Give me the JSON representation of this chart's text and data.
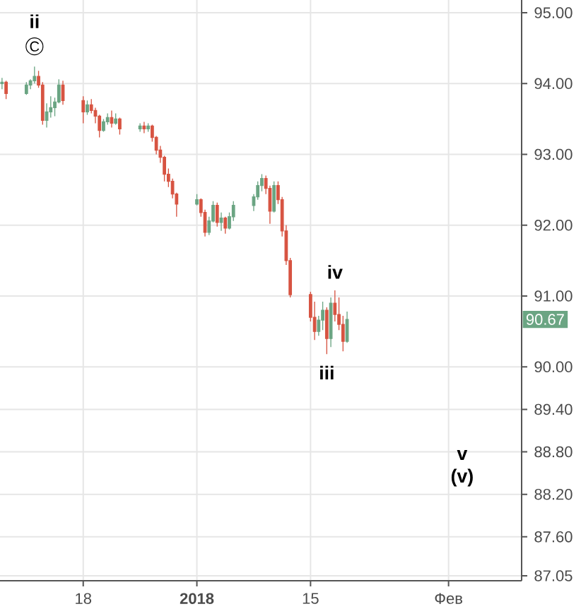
{
  "chart_data": {
    "type": "candlestick",
    "x": [
      "2017-12-08T00:00",
      "2017-12-08T12:00",
      "2017-12-11T00:00",
      "2017-12-11T12:00",
      "2017-12-12T00:00",
      "2017-12-12T12:00",
      "2017-12-13T00:00",
      "2017-12-13T12:00",
      "2017-12-14T00:00",
      "2017-12-14T12:00",
      "2017-12-15T00:00",
      "2017-12-15T12:00",
      "2017-12-18T00:00",
      "2017-12-18T12:00",
      "2017-12-19T00:00",
      "2017-12-19T12:00",
      "2017-12-20T00:00",
      "2017-12-20T12:00",
      "2017-12-21T00:00",
      "2017-12-21T12:00",
      "2017-12-22T00:00",
      "2017-12-22T12:00",
      "2017-12-25T00:00",
      "2017-12-25T12:00",
      "2017-12-26T00:00",
      "2017-12-26T12:00",
      "2017-12-27T00:00",
      "2017-12-27T12:00",
      "2017-12-28T00:00",
      "2017-12-28T12:00",
      "2017-12-29T00:00",
      "2017-12-29T12:00",
      "2018-01-01T00:00",
      "2018-01-01T12:00",
      "2018-01-02T00:00",
      "2018-01-02T12:00",
      "2018-01-03T00:00",
      "2018-01-03T12:00",
      "2018-01-04T00:00",
      "2018-01-04T12:00",
      "2018-01-05T00:00",
      "2018-01-05T12:00",
      "2018-01-08T00:00",
      "2018-01-08T12:00",
      "2018-01-09T00:00",
      "2018-01-09T12:00",
      "2018-01-10T00:00",
      "2018-01-10T12:00",
      "2018-01-11T00:00",
      "2018-01-11T12:00",
      "2018-01-12T00:00",
      "2018-01-12T12:00",
      "2018-01-15T00:00",
      "2018-01-15T12:00",
      "2018-01-16T00:00",
      "2018-01-16T12:00",
      "2018-01-17T00:00",
      "2018-01-17T12:00",
      "2018-01-18T00:00",
      "2018-01-18T12:00",
      "2018-01-19T00:00",
      "2018-01-19T12:00"
    ],
    "ohlc": [
      [
        94.0,
        94.08,
        93.92,
        94.02
      ],
      [
        94.02,
        94.04,
        93.78,
        93.86
      ],
      [
        93.86,
        94.02,
        93.84,
        93.98
      ],
      [
        93.98,
        94.06,
        93.92,
        94.04
      ],
      [
        94.04,
        94.24,
        94.0,
        94.1
      ],
      [
        94.1,
        94.18,
        93.94,
        93.98
      ],
      [
        93.98,
        94.02,
        93.42,
        93.48
      ],
      [
        93.48,
        93.72,
        93.38,
        93.6
      ],
      [
        93.6,
        93.82,
        93.52,
        93.66
      ],
      [
        93.66,
        93.8,
        93.54,
        93.74
      ],
      [
        93.74,
        94.06,
        93.72,
        93.98
      ],
      [
        93.98,
        94.04,
        93.7,
        93.76
      ],
      [
        93.76,
        93.82,
        93.44,
        93.6
      ],
      [
        93.6,
        93.76,
        93.56,
        93.7
      ],
      [
        93.7,
        93.78,
        93.58,
        93.62
      ],
      [
        93.62,
        93.66,
        93.44,
        93.54
      ],
      [
        93.54,
        93.56,
        93.24,
        93.34
      ],
      [
        93.34,
        93.5,
        93.32,
        93.46
      ],
      [
        93.46,
        93.58,
        93.42,
        93.52
      ],
      [
        93.52,
        93.62,
        93.38,
        93.44
      ],
      [
        93.44,
        93.58,
        93.42,
        93.5
      ],
      [
        93.5,
        93.52,
        93.28,
        93.36
      ],
      [
        93.36,
        93.44,
        93.32,
        93.4
      ],
      [
        93.4,
        93.46,
        93.3,
        93.36
      ],
      [
        93.36,
        93.44,
        93.32,
        93.4
      ],
      [
        93.4,
        93.42,
        93.18,
        93.24
      ],
      [
        93.24,
        93.26,
        93.0,
        93.06
      ],
      [
        93.06,
        93.12,
        92.88,
        92.96
      ],
      [
        92.96,
        92.98,
        92.62,
        92.72
      ],
      [
        92.72,
        92.8,
        92.54,
        92.62
      ],
      [
        92.62,
        92.66,
        92.38,
        92.44
      ],
      [
        92.44,
        92.46,
        92.12,
        92.3
      ],
      [
        92.3,
        92.44,
        92.28,
        92.36
      ],
      [
        92.36,
        92.38,
        92.12,
        92.18
      ],
      [
        92.18,
        92.22,
        91.84,
        91.9
      ],
      [
        91.9,
        92.12,
        91.86,
        92.06
      ],
      [
        92.06,
        92.34,
        92.04,
        92.28
      ],
      [
        92.28,
        92.32,
        91.98,
        92.04
      ],
      [
        92.04,
        92.18,
        91.92,
        92.1
      ],
      [
        92.1,
        92.12,
        91.88,
        91.96
      ],
      [
        91.96,
        92.18,
        91.94,
        92.12
      ],
      [
        92.12,
        92.34,
        92.06,
        92.28
      ],
      [
        92.28,
        92.44,
        92.2,
        92.4
      ],
      [
        92.4,
        92.62,
        92.36,
        92.56
      ],
      [
        92.56,
        92.72,
        92.48,
        92.66
      ],
      [
        92.66,
        92.7,
        92.44,
        92.52
      ],
      [
        92.52,
        92.56,
        92.02,
        92.2
      ],
      [
        92.2,
        92.62,
        92.18,
        92.56
      ],
      [
        92.56,
        92.62,
        92.3,
        92.36
      ],
      [
        92.36,
        92.4,
        91.84,
        91.92
      ],
      [
        91.92,
        92.0,
        91.44,
        91.5
      ],
      [
        91.5,
        91.54,
        90.98,
        91.02
      ],
      [
        91.02,
        91.06,
        90.64,
        90.7
      ],
      [
        90.7,
        90.92,
        90.38,
        90.5
      ],
      [
        90.5,
        90.72,
        90.44,
        90.66
      ],
      [
        90.66,
        90.92,
        90.52,
        90.8
      ],
      [
        90.8,
        90.84,
        90.18,
        90.4
      ],
      [
        90.4,
        90.98,
        90.28,
        90.9
      ],
      [
        90.9,
        91.08,
        90.64,
        90.74
      ],
      [
        90.74,
        90.98,
        90.52,
        90.6
      ],
      [
        90.6,
        90.72,
        90.22,
        90.36
      ],
      [
        90.36,
        90.78,
        90.34,
        90.67
      ]
    ],
    "colors": [
      "#6ba583",
      "#d75442",
      "#6ba583",
      "#6ba583",
      "#6ba583",
      "#d75442",
      "#d75442",
      "#6ba583",
      "#6ba583",
      "#6ba583",
      "#6ba583",
      "#d75442",
      "#d75442",
      "#6ba583",
      "#d75442",
      "#d75442",
      "#d75442",
      "#6ba583",
      "#6ba583",
      "#d75442",
      "#6ba583",
      "#d75442",
      "#6ba583",
      "#d75442",
      "#6ba583",
      "#d75442",
      "#d75442",
      "#d75442",
      "#d75442",
      "#d75442",
      "#d75442",
      "#d75442",
      "#6ba583",
      "#d75442",
      "#d75442",
      "#6ba583",
      "#6ba583",
      "#d75442",
      "#6ba583",
      "#d75442",
      "#6ba583",
      "#6ba583",
      "#6ba583",
      "#6ba583",
      "#6ba583",
      "#d75442",
      "#d75442",
      "#6ba583",
      "#d75442",
      "#d75442",
      "#d75442",
      "#d75442",
      "#d75442",
      "#d75442",
      "#6ba583",
      "#6ba583",
      "#d75442",
      "#6ba583",
      "#d75442",
      "#d75442",
      "#d75442",
      "#6ba583"
    ],
    "xlim": [
      "2017-12-07T18:00",
      "2018-02-10T00:00"
    ],
    "xticks": [
      {
        "value": "2017-12-18",
        "label": "18"
      },
      {
        "value": "2018-01-01",
        "label": "**2018**"
      },
      {
        "value": "2018-01-15",
        "label": "15"
      },
      {
        "value": "2018-02-01",
        "label": "Фев"
      }
    ],
    "ylim": [
      86.98,
      95.18
    ],
    "yticks": [
      {
        "value": 87.05,
        "label": "87.05"
      },
      {
        "value": 87.6,
        "label": "87.60"
      },
      {
        "value": 88.2,
        "label": "88.20"
      },
      {
        "value": 88.8,
        "label": "88.80"
      },
      {
        "value": 89.4,
        "label": "89.40"
      },
      {
        "value": 90,
        "label": "90.00"
      },
      {
        "value": 91,
        "label": "91.00"
      },
      {
        "value": 92,
        "label": "92.00"
      },
      {
        "value": 93,
        "label": "93.00"
      },
      {
        "value": 94,
        "label": "94.00"
      },
      {
        "value": 95,
        "label": "95.00"
      }
    ],
    "grid": true,
    "annotations": [
      {
        "text": "ii",
        "x": "2017-12-12T00:00",
        "y": 94.24
      },
      {
        "text": "C",
        "x": "2017-12-12T00:00",
        "y": 94.24
      },
      {
        "text": "iii",
        "x": "2018-01-17T00:00",
        "y": 90.18
      },
      {
        "text": "iv",
        "x": "2018-01-18T00:00",
        "y": 91.08
      },
      "v",
      "(v)",
      {
        "text": "90.67",
        "y": 90.67
      }
    ]
  }
}
